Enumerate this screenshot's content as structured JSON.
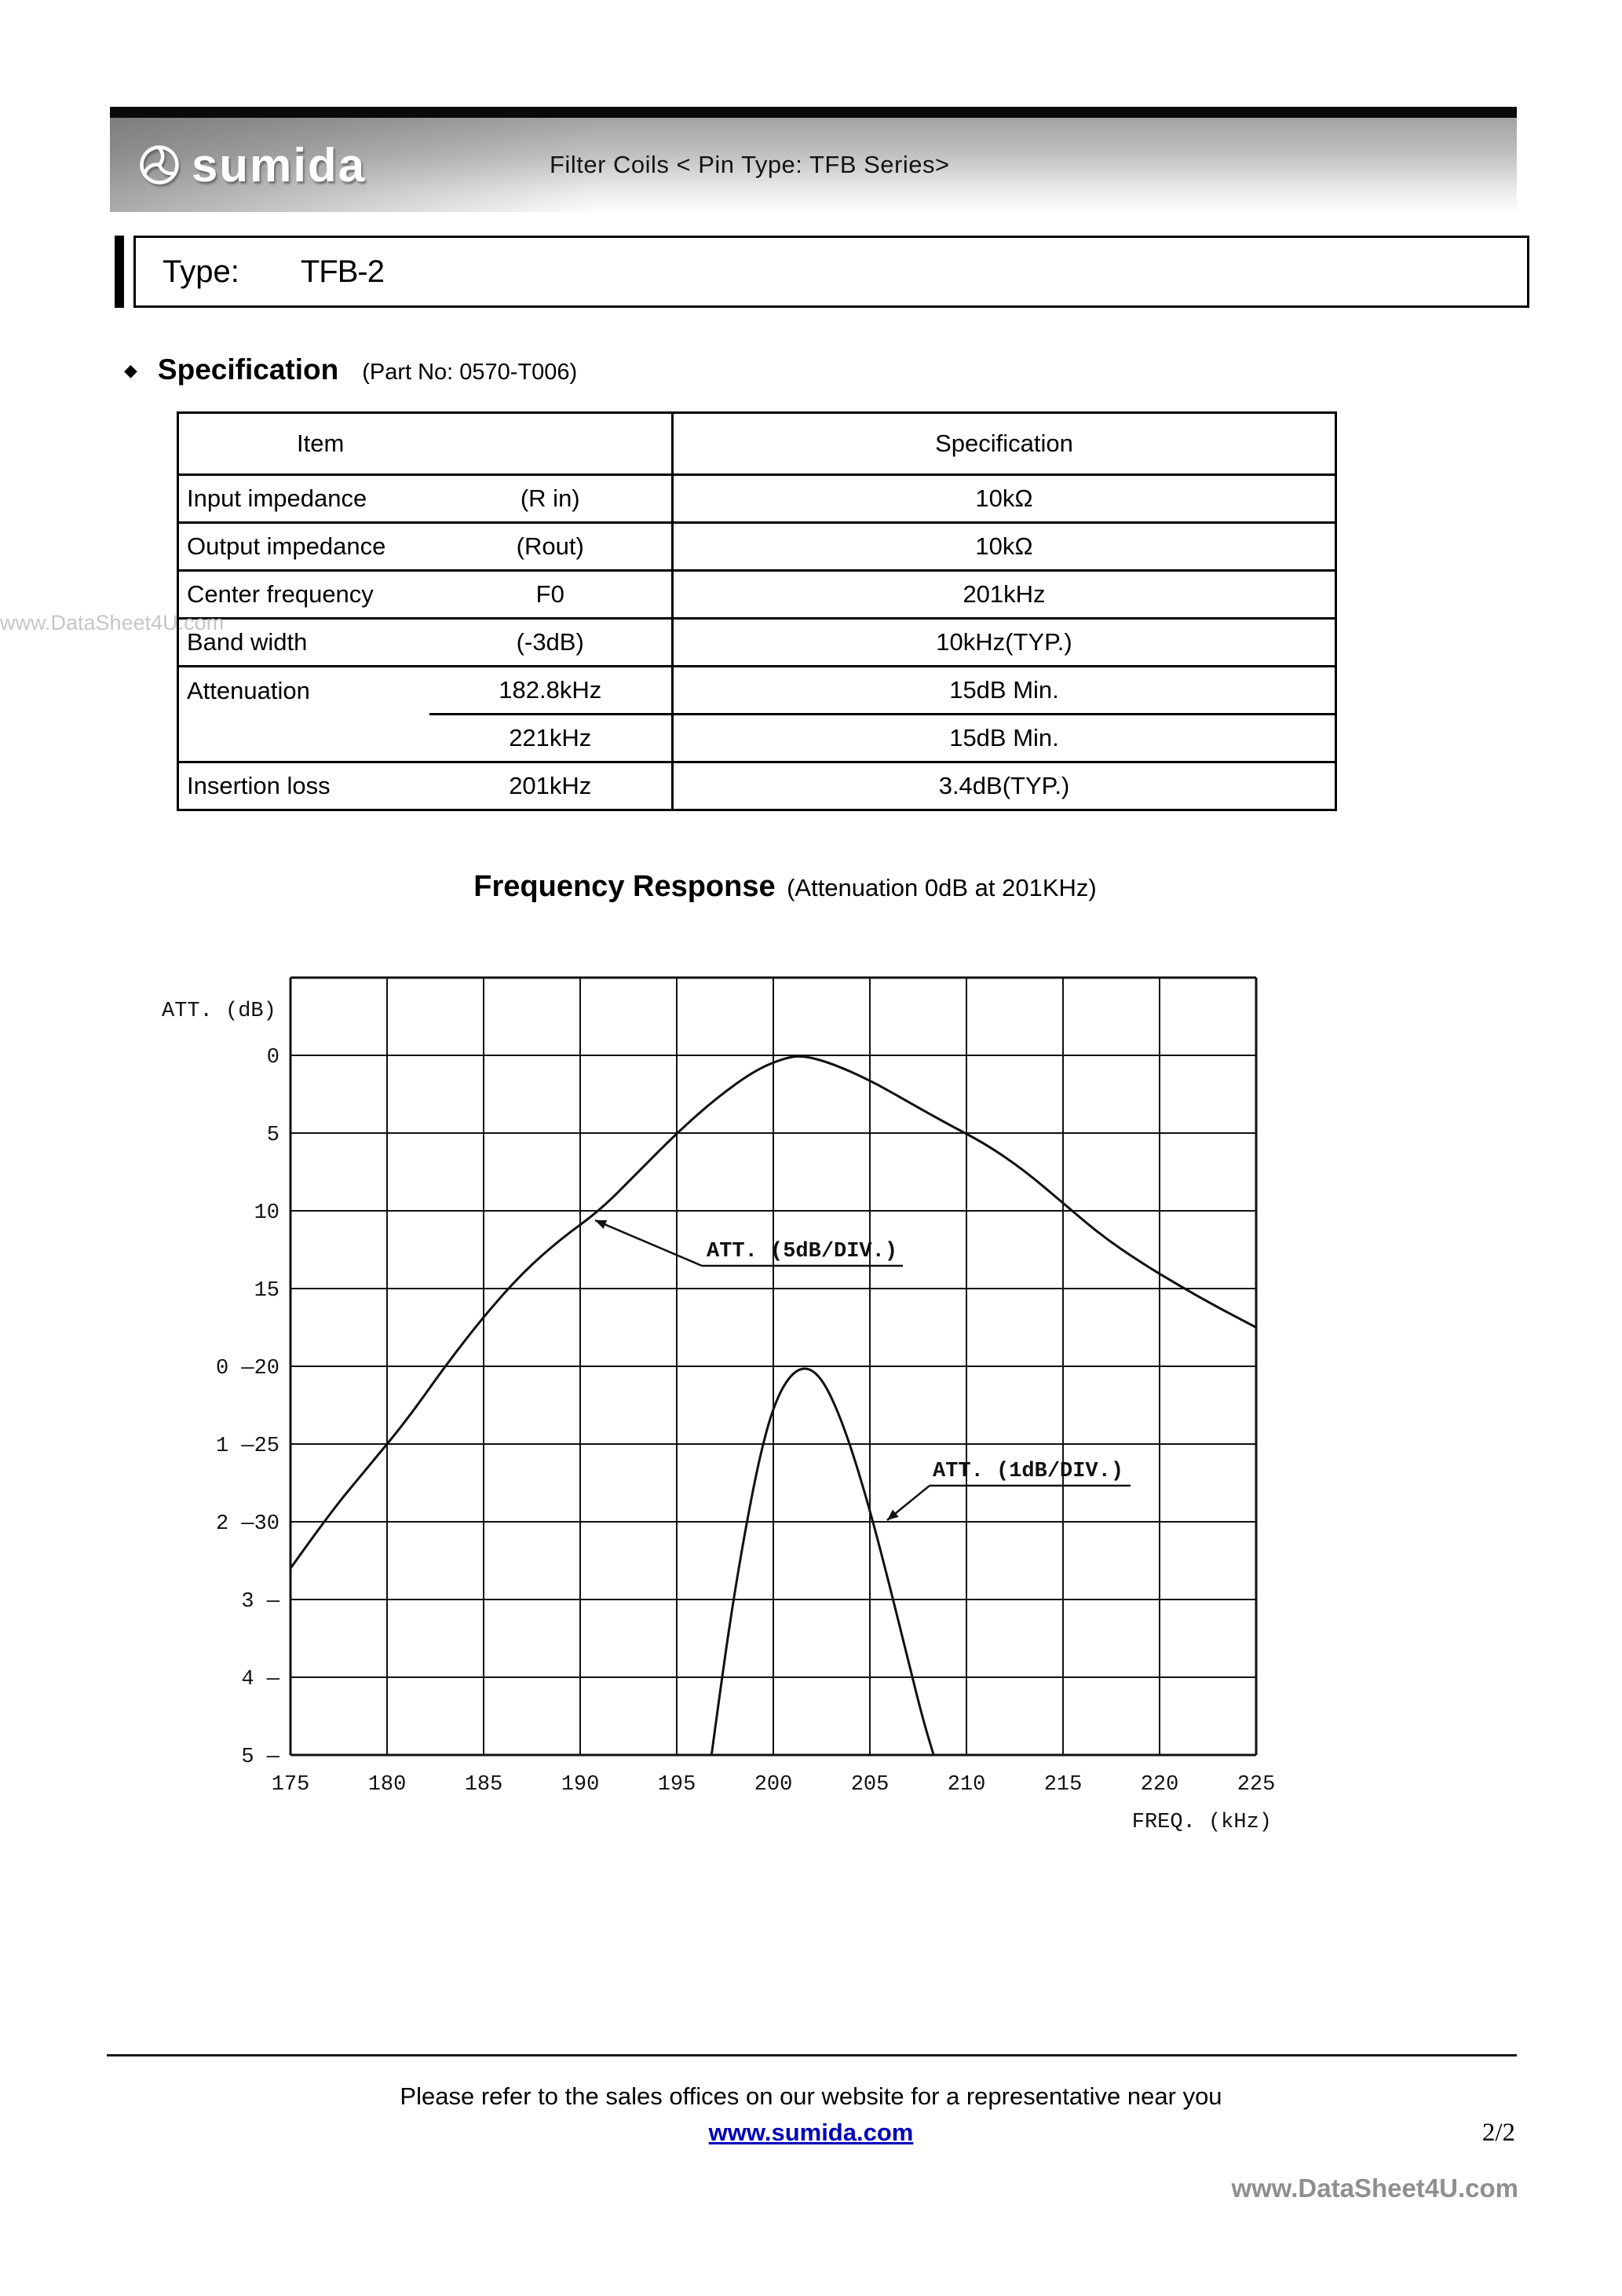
{
  "header": {
    "logo_text": "sumida",
    "banner_title": "Filter Coils < Pin Type: TFB Series>",
    "type_label": "Type:",
    "type_value": "TFB-2"
  },
  "specification": {
    "bullet": "◆",
    "heading": "Specification",
    "part_no": "(Part No: 0570-T006)",
    "table": {
      "headers": [
        "Item",
        "Specification"
      ],
      "rows": [
        {
          "item": "Input impedance",
          "param": "(R in)",
          "spec": "10kΩ"
        },
        {
          "item": "Output impedance",
          "param": "(Rout)",
          "spec": "10kΩ"
        },
        {
          "item": "Center frequency",
          "param": "F0",
          "spec": "201kHz"
        },
        {
          "item": "Band width",
          "param": "(-3dB)",
          "spec": "10kHz(TYP.)"
        },
        {
          "item": "Attenuation",
          "param": "182.8kHz",
          "spec": "15dB Min."
        },
        {
          "item": "",
          "param": "221kHz",
          "spec": "15dB Min."
        },
        {
          "item": "Insertion loss",
          "param": "201kHz",
          "spec": "3.4dB(TYP.)"
        }
      ]
    }
  },
  "frequency_response": {
    "title": "Frequency Response",
    "subtitle": "(Attenuation 0dB at 201KHz)"
  },
  "chart_data": {
    "type": "line",
    "title": "Frequency Response (Attenuation 0dB at 201KHz)",
    "xlabel": "FREQ. (kHz)",
    "ylabel": "ATT. (dB)",
    "x_range": [
      175,
      225
    ],
    "x_ticks": [
      175,
      180,
      185,
      190,
      195,
      200,
      205,
      210,
      215,
      220,
      225
    ],
    "y_axis_labels": [
      "0",
      "5",
      "10",
      "15",
      "0 —20",
      "1 —25",
      "2 —30",
      "3 —",
      "4 —",
      "5 —"
    ],
    "grid": true,
    "series": [
      {
        "name": "ATT. (5dB/DIV.)",
        "db_per_div": 5,
        "zero_line_row": 1,
        "points": [
          [
            175,
            33
          ],
          [
            177,
            29.5
          ],
          [
            179,
            26.5
          ],
          [
            181,
            23.5
          ],
          [
            183,
            20
          ],
          [
            185,
            16.8
          ],
          [
            187,
            14
          ],
          [
            189,
            11.8
          ],
          [
            191,
            10
          ],
          [
            193,
            7.5
          ],
          [
            195,
            5
          ],
          [
            197,
            2.8
          ],
          [
            199,
            1
          ],
          [
            200.5,
            0.2
          ],
          [
            201.5,
            0
          ],
          [
            203,
            0.5
          ],
          [
            205,
            1.6
          ],
          [
            207,
            3
          ],
          [
            209,
            4.4
          ],
          [
            211,
            5.7
          ],
          [
            213,
            7.4
          ],
          [
            215,
            9.5
          ],
          [
            217,
            11.6
          ],
          [
            219,
            13.3
          ],
          [
            221,
            14.8
          ],
          [
            223,
            16.2
          ],
          [
            225,
            17.5
          ]
        ]
      },
      {
        "name": "ATT. (1dB/DIV.)",
        "db_per_div": 1,
        "zero_line_row": 5,
        "points": [
          [
            196.8,
            5
          ],
          [
            197.4,
            3.9
          ],
          [
            198,
            2.9
          ],
          [
            198.7,
            1.9
          ],
          [
            199.4,
            1.05
          ],
          [
            200.1,
            0.45
          ],
          [
            200.9,
            0.1
          ],
          [
            201.7,
            0
          ],
          [
            202.5,
            0.15
          ],
          [
            203.3,
            0.55
          ],
          [
            204.1,
            1.1
          ],
          [
            205,
            1.85
          ],
          [
            205.9,
            2.7
          ],
          [
            206.8,
            3.6
          ],
          [
            207.7,
            4.5
          ],
          [
            208.3,
            5
          ]
        ]
      }
    ],
    "annotations": [
      "ATT. (5dB/DIV.)",
      "ATT. (1dB/DIV.)"
    ]
  },
  "footer": {
    "note": "Please refer to the sales offices on our website for a representative near you",
    "website": "www.sumida.com",
    "page_number": "2/2",
    "brand": "www.DataSheet4U.com"
  },
  "watermark": "www.DataSheet4U.com"
}
